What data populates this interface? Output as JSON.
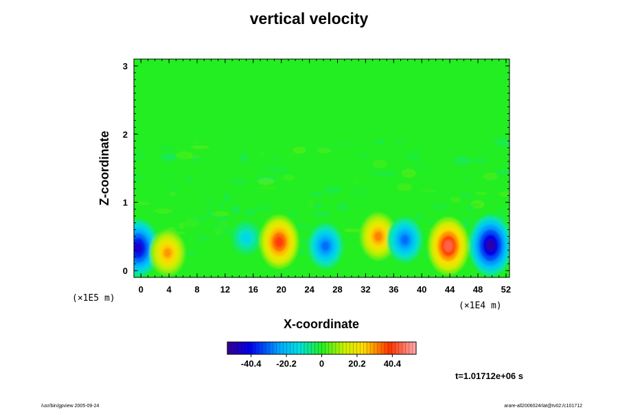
{
  "chart_data": {
    "type": "heatmap",
    "title": "vertical velocity",
    "xlabel": "X-coordinate",
    "ylabel": "Z-coordinate",
    "x_unit": "(×1E4 m)",
    "y_unit": "(×1E5 m)",
    "x_ticks": [
      "0",
      "4",
      "8",
      "12",
      "16",
      "20",
      "24",
      "28",
      "32",
      "36",
      "40",
      "44",
      "48",
      "52"
    ],
    "y_ticks": [
      "0",
      "1",
      "2",
      "3"
    ],
    "xlim": [
      -1,
      52.5
    ],
    "ylim": [
      -0.1,
      3.1
    ],
    "colorbar": {
      "ticks": [
        "-40.4",
        "-20.2",
        "0",
        "20.2",
        "40.4"
      ],
      "tick_values": [
        -40.4,
        -20.2,
        0,
        20.2,
        40.4
      ],
      "range": [
        -54,
        54
      ],
      "background_color": "#22ee22"
    },
    "features": [
      {
        "x": -0.4,
        "z": 0.33,
        "value": -45
      },
      {
        "x": 3.8,
        "z": 0.26,
        "value": 30
      },
      {
        "x": 15.0,
        "z": 0.48,
        "value": -15
      },
      {
        "x": 19.7,
        "z": 0.42,
        "value": 40
      },
      {
        "x": 26.3,
        "z": 0.36,
        "value": -30
      },
      {
        "x": 33.8,
        "z": 0.5,
        "value": 32
      },
      {
        "x": 37.6,
        "z": 0.45,
        "value": -30
      },
      {
        "x": 43.8,
        "z": 0.36,
        "value": 45
      },
      {
        "x": 49.8,
        "z": 0.37,
        "value": -50
      }
    ]
  },
  "time_label": "t=1.01712e+06 s",
  "footer_left": "/usr/bin/gpview 2005-09-24",
  "footer_right": "arare-all2006024rlat@tv02:/c101712"
}
